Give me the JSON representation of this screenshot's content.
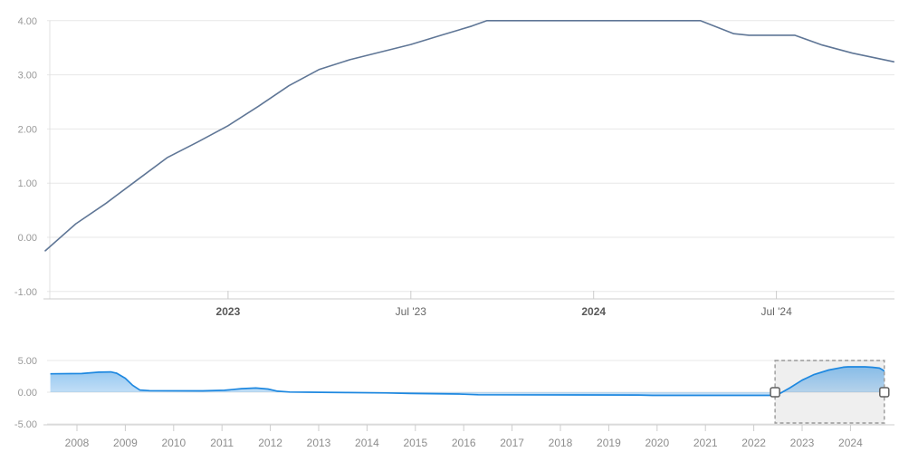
{
  "chart_data": {
    "type": "line",
    "title": "",
    "description": "Interest rate (%) time series with range navigator, selected window mid-2022 to late 2024",
    "main": {
      "type": "line",
      "ylabel": "",
      "xlabel": "",
      "ylim": [
        -1.15,
        4.12
      ],
      "ytick_values": [
        4,
        3,
        2,
        1,
        0,
        -1
      ],
      "ytick_labels": [
        "4.00",
        "3.00",
        "2.00",
        "1.00",
        "0.00",
        "-1.00"
      ],
      "xtick_labels": [
        "2023",
        "Jul '23",
        "2024",
        "Jul '24"
      ],
      "xtick_bold": [
        true,
        false,
        true,
        false
      ],
      "xtick_month_offsets": [
        6,
        12,
        18,
        24
      ],
      "x_unit": "months since 2022-07",
      "points": [
        [
          0,
          -0.25
        ],
        [
          1,
          0.25
        ],
        [
          2,
          0.63
        ],
        [
          3,
          1.05
        ],
        [
          4,
          1.47
        ],
        [
          5,
          1.76
        ],
        [
          6,
          2.06
        ],
        [
          7,
          2.42
        ],
        [
          8,
          2.8
        ],
        [
          9,
          3.1
        ],
        [
          10,
          3.28
        ],
        [
          11,
          3.42
        ],
        [
          12,
          3.56
        ],
        [
          13,
          3.73
        ],
        [
          14,
          3.9
        ],
        [
          14.5,
          4.0
        ],
        [
          21.5,
          4.0
        ],
        [
          22.6,
          3.76
        ],
        [
          23.1,
          3.73
        ],
        [
          24.6,
          3.73
        ],
        [
          25.5,
          3.55
        ],
        [
          26.5,
          3.4
        ],
        [
          27.85,
          3.24
        ]
      ]
    },
    "navigator": {
      "type": "area",
      "ylim": [
        -5.5,
        5.5
      ],
      "ytick_values": [
        5,
        0,
        -5
      ],
      "ytick_labels": [
        "5.00",
        "0.00",
        "-5.00"
      ],
      "year_labels": [
        "2008",
        "2009",
        "2010",
        "2011",
        "2012",
        "2013",
        "2014",
        "2015",
        "2016",
        "2017",
        "2018",
        "2019",
        "2020",
        "2021",
        "2022",
        "2023",
        "2024"
      ],
      "x_unit": "year",
      "points": [
        [
          2007.45,
          2.9
        ],
        [
          2008.1,
          2.95
        ],
        [
          2008.45,
          3.15
        ],
        [
          2008.7,
          3.2
        ],
        [
          2008.82,
          3.0
        ],
        [
          2009.0,
          2.2
        ],
        [
          2009.15,
          1.1
        ],
        [
          2009.3,
          0.35
        ],
        [
          2009.5,
          0.25
        ],
        [
          2010.6,
          0.22
        ],
        [
          2011.05,
          0.3
        ],
        [
          2011.4,
          0.55
        ],
        [
          2011.7,
          0.65
        ],
        [
          2011.95,
          0.5
        ],
        [
          2012.15,
          0.15
        ],
        [
          2012.4,
          0.03
        ],
        [
          2012.8,
          0.0
        ],
        [
          2013.6,
          -0.05
        ],
        [
          2014.4,
          -0.12
        ],
        [
          2014.9,
          -0.2
        ],
        [
          2015.9,
          -0.28
        ],
        [
          2016.3,
          -0.4
        ],
        [
          2019.6,
          -0.44
        ],
        [
          2019.9,
          -0.5
        ],
        [
          2022.35,
          -0.5
        ],
        [
          2022.55,
          -0.15
        ],
        [
          2022.75,
          0.7
        ],
        [
          2023.0,
          1.9
        ],
        [
          2023.25,
          2.8
        ],
        [
          2023.55,
          3.5
        ],
        [
          2023.85,
          3.95
        ],
        [
          2023.95,
          4.0
        ],
        [
          2024.3,
          4.0
        ],
        [
          2024.45,
          3.93
        ],
        [
          2024.6,
          3.8
        ],
        [
          2024.66,
          3.55
        ],
        [
          2024.7,
          3.3
        ]
      ],
      "selection": {
        "start_year": 2022.44,
        "end_year": 2024.7
      },
      "legend": "none",
      "grid": "horizontal"
    }
  },
  "colors": {
    "main_line": "#5f7696",
    "nav_line": "#1e88e0",
    "nav_fill": "#1e88e0",
    "grid": "#e7e7e7",
    "axis_line": "#cccccc",
    "tick": "#cccccc",
    "y_label": "#999999",
    "x_label": "#666666",
    "x_label_bold": "#585858",
    "nav_year_label": "#8d8d8d",
    "selection_fill": "rgba(125,125,125,0.12)",
    "selection_border": "#9a9a9a",
    "handle_fill": "#ffffff",
    "handle_border": "#5f5f5f",
    "background": "#ffffff"
  }
}
